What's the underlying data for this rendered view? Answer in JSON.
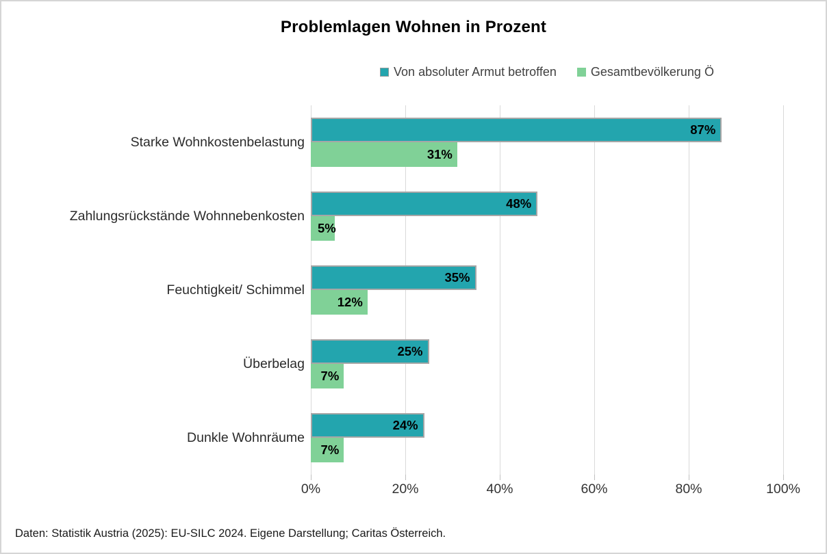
{
  "title": "Problemlagen Wohnen in Prozent",
  "footer": "Daten: Statistik Austria (2025): EU-SILC 2024. Eigene Darstellung; Caritas Österreich.",
  "colors": {
    "series_poverty": "#23a5ae",
    "series_population": "#80d197",
    "bar_border": "#a6a6a6",
    "gridline": "#d9d9d9",
    "text": "#404040"
  },
  "legend": [
    {
      "label": "Von absoluter Armut betroffen",
      "color": "#23a5ae",
      "bordered": true
    },
    {
      "label": "Gesamtbevölkerung Ö",
      "color": "#80d197",
      "bordered": false
    }
  ],
  "chart_data": {
    "type": "bar",
    "orientation": "horizontal",
    "title": "Problemlagen Wohnen in Prozent",
    "categories": [
      "Starke Wohnkostenbelastung",
      "Zahlungsrückstände Wohnnebenkosten",
      "Feuchtigkeit/ Schimmel",
      "Überbelag",
      "Dunkle Wohnräume"
    ],
    "series": [
      {
        "name": "Von absoluter Armut betroffen",
        "color": "#23a5ae",
        "values": [
          87,
          48,
          35,
          25,
          24
        ]
      },
      {
        "name": "Gesamtbevölkerung Ö",
        "color": "#80d197",
        "values": [
          31,
          5,
          12,
          7,
          7
        ]
      }
    ],
    "value_label_format": "{v}%",
    "xlabel": "",
    "ylabel": "",
    "xlim": [
      0,
      100
    ],
    "ticks": [
      {
        "label": "0%",
        "value": 0
      },
      {
        "label": "20%",
        "value": 20
      },
      {
        "label": "40%",
        "value": 40
      },
      {
        "label": "60%",
        "value": 60
      },
      {
        "label": "80%",
        "value": 80
      },
      {
        "label": "100%",
        "value": 100
      }
    ],
    "grid": "vertical",
    "legend_position": "top"
  }
}
